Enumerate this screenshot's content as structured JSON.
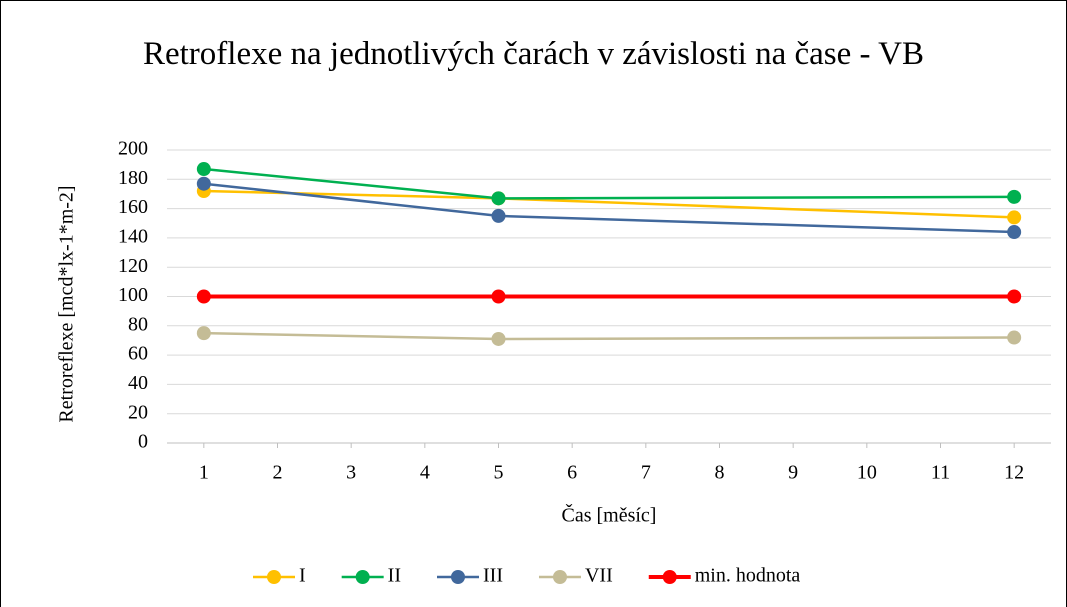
{
  "chart_data": {
    "type": "line",
    "title": "Retroflexe na jednotlivých čarách v závislosti na čase - VB",
    "x_label": "Čas [měsíc]",
    "y_label": "Retroreflexe [mcd*lx-1*m-2]",
    "x": [
      1,
      5,
      12
    ],
    "xlim": [
      0.5,
      12.5
    ],
    "xticks": [
      1,
      2,
      3,
      4,
      5,
      6,
      7,
      8,
      9,
      10,
      11,
      12
    ],
    "ylim": [
      0,
      200
    ],
    "yticks": [
      0,
      20,
      40,
      60,
      80,
      100,
      120,
      140,
      160,
      180,
      200
    ],
    "grid": true,
    "legend": "bottom",
    "series": [
      {
        "name": "I",
        "color": "#FFC000",
        "values": [
          172,
          167,
          154
        ]
      },
      {
        "name": "II",
        "color": "#00B050",
        "values": [
          187,
          167,
          168
        ]
      },
      {
        "name": "III",
        "color": "#41689C",
        "values": [
          177,
          155,
          144
        ]
      },
      {
        "name": "VII",
        "color": "#C4BC96",
        "values": [
          75,
          71,
          72
        ]
      },
      {
        "name": "min. hodnota",
        "color": "#FF0000",
        "values": [
          100,
          100,
          100
        ]
      }
    ]
  }
}
